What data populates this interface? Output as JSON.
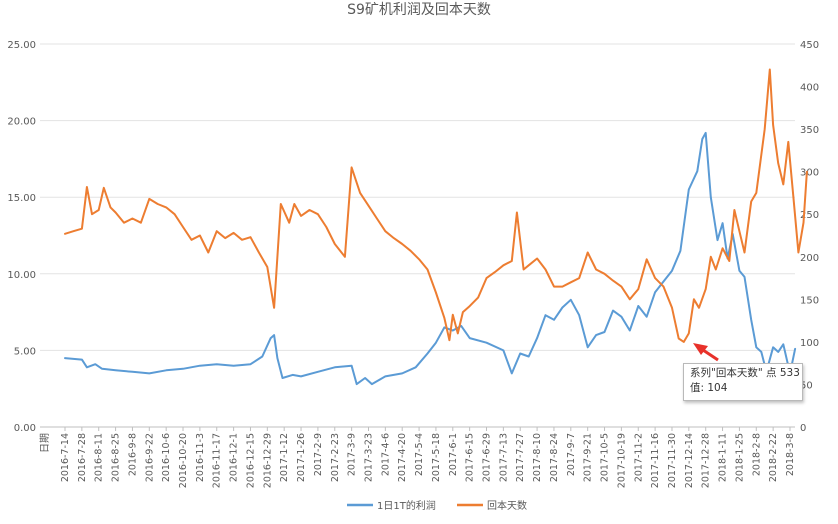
{
  "chart_data": {
    "type": "line",
    "title": "S9矿机利润及回本天数",
    "xlabel": "日期",
    "left_axis": {
      "min": 0,
      "max": 25,
      "ticks": [
        "0.00",
        "5.00",
        "10.00",
        "15.00",
        "20.00",
        "25.00"
      ]
    },
    "right_axis": {
      "min": 0,
      "max": 450,
      "ticks": [
        "0",
        "50",
        "100",
        "150",
        "200",
        "250",
        "300",
        "350",
        "400",
        "450"
      ]
    },
    "x_tick_labels": [
      "2016-7-14",
      "2016-7-28",
      "2016-8-11",
      "2016-8-25",
      "2016-9-8",
      "2016-9-22",
      "2016-10-6",
      "2016-10-20",
      "2016-11-3",
      "2016-11-17",
      "2016-12-1",
      "2016-12-15",
      "2016-12-29",
      "2017-1-12",
      "2017-1-26",
      "2017-2-9",
      "2017-2-23",
      "2017-3-9",
      "2017-3-23",
      "2017-4-6",
      "2017-4-20",
      "2017-5-4",
      "2017-5-18",
      "2017-6-1",
      "2017-6-15",
      "2017-6-29",
      "2017-7-13",
      "2017-7-27",
      "2017-8-10",
      "2017-8-24",
      "2017-9-7",
      "2017-9-21",
      "2017-10-5",
      "2017-10-19",
      "2017-11-2",
      "2017-11-16",
      "2017-11-30",
      "2017-12-14",
      "2017-12-28",
      "2018-1-11",
      "2018-1-25",
      "2018-2-8",
      "2018-2-22",
      "2018-3-8"
    ],
    "series": [
      {
        "name": "1日1T的利润",
        "axis": "left",
        "color": "#5b9bd5",
        "points": [
          [
            0,
            4.5
          ],
          [
            1,
            4.4
          ],
          [
            1.3,
            3.9
          ],
          [
            1.8,
            4.1
          ],
          [
            2.2,
            3.8
          ],
          [
            3,
            3.7
          ],
          [
            4,
            3.6
          ],
          [
            5,
            3.5
          ],
          [
            6,
            3.7
          ],
          [
            7,
            3.8
          ],
          [
            8,
            4.0
          ],
          [
            9,
            4.1
          ],
          [
            10,
            4.0
          ],
          [
            11,
            4.1
          ],
          [
            11.7,
            4.6
          ],
          [
            12.2,
            5.8
          ],
          [
            12.4,
            6.0
          ],
          [
            12.6,
            4.5
          ],
          [
            12.9,
            3.2
          ],
          [
            13.5,
            3.4
          ],
          [
            14,
            3.3
          ],
          [
            15,
            3.6
          ],
          [
            16,
            3.9
          ],
          [
            17,
            4.0
          ],
          [
            17.3,
            2.8
          ],
          [
            17.8,
            3.2
          ],
          [
            18.2,
            2.8
          ],
          [
            19,
            3.3
          ],
          [
            20,
            3.5
          ],
          [
            20.8,
            3.9
          ],
          [
            21.5,
            4.8
          ],
          [
            22,
            5.5
          ],
          [
            22.5,
            6.5
          ],
          [
            23,
            6.3
          ],
          [
            23.5,
            6.6
          ],
          [
            24,
            5.8
          ],
          [
            25,
            5.5
          ],
          [
            26,
            5.0
          ],
          [
            26.5,
            3.5
          ],
          [
            27,
            4.8
          ],
          [
            27.5,
            4.6
          ],
          [
            28,
            5.8
          ],
          [
            28.5,
            7.3
          ],
          [
            29,
            7.0
          ],
          [
            29.5,
            7.8
          ],
          [
            30,
            8.3
          ],
          [
            30.5,
            7.3
          ],
          [
            31,
            5.2
          ],
          [
            31.5,
            6.0
          ],
          [
            32,
            6.2
          ],
          [
            32.5,
            7.6
          ],
          [
            33,
            7.2
          ],
          [
            33.5,
            6.3
          ],
          [
            34,
            7.9
          ],
          [
            34.5,
            7.2
          ],
          [
            35,
            8.8
          ],
          [
            35.5,
            9.5
          ],
          [
            36,
            10.2
          ],
          [
            36.5,
            11.5
          ],
          [
            37,
            15.5
          ],
          [
            37.5,
            16.7
          ],
          [
            37.8,
            18.8
          ],
          [
            38,
            19.2
          ],
          [
            38.3,
            15.0
          ],
          [
            38.7,
            12.2
          ],
          [
            39,
            13.3
          ],
          [
            39.3,
            11.0
          ],
          [
            39.6,
            12.6
          ],
          [
            40,
            10.2
          ],
          [
            40.3,
            9.8
          ],
          [
            40.7,
            7.0
          ],
          [
            41,
            5.2
          ],
          [
            41.3,
            4.9
          ],
          [
            41.6,
            3.6
          ],
          [
            42,
            5.2
          ],
          [
            42.3,
            4.9
          ],
          [
            42.6,
            5.4
          ],
          [
            43,
            3.5
          ],
          [
            43.3,
            5.1
          ]
        ]
      },
      {
        "name": "回本天数",
        "axis": "right",
        "color": "#ed7d31",
        "points": [
          [
            0,
            227
          ],
          [
            0.5,
            230
          ],
          [
            1,
            233
          ],
          [
            1.3,
            282
          ],
          [
            1.6,
            250
          ],
          [
            2,
            255
          ],
          [
            2.3,
            281
          ],
          [
            2.7,
            258
          ],
          [
            3,
            252
          ],
          [
            3.5,
            240
          ],
          [
            4,
            245
          ],
          [
            4.5,
            240
          ],
          [
            5,
            268
          ],
          [
            5.5,
            262
          ],
          [
            6,
            258
          ],
          [
            6.5,
            250
          ],
          [
            7,
            235
          ],
          [
            7.5,
            220
          ],
          [
            8,
            225
          ],
          [
            8.5,
            205
          ],
          [
            9,
            230
          ],
          [
            9.5,
            222
          ],
          [
            10,
            228
          ],
          [
            10.5,
            220
          ],
          [
            11,
            223
          ],
          [
            11.5,
            205
          ],
          [
            12,
            188
          ],
          [
            12.4,
            140
          ],
          [
            12.8,
            262
          ],
          [
            13.3,
            240
          ],
          [
            13.6,
            262
          ],
          [
            14,
            248
          ],
          [
            14.5,
            255
          ],
          [
            15,
            250
          ],
          [
            15.5,
            235
          ],
          [
            16,
            215
          ],
          [
            16.6,
            200
          ],
          [
            17,
            305
          ],
          [
            17.5,
            275
          ],
          [
            18,
            260
          ],
          [
            18.5,
            245
          ],
          [
            19,
            230
          ],
          [
            19.5,
            222
          ],
          [
            20,
            215
          ],
          [
            20.5,
            207
          ],
          [
            21,
            197
          ],
          [
            21.5,
            185
          ],
          [
            22,
            158
          ],
          [
            22.5,
            128
          ],
          [
            22.8,
            102
          ],
          [
            23,
            132
          ],
          [
            23.3,
            110
          ],
          [
            23.6,
            135
          ],
          [
            24,
            142
          ],
          [
            24.5,
            152
          ],
          [
            25,
            175
          ],
          [
            25.5,
            182
          ],
          [
            26,
            190
          ],
          [
            26.5,
            195
          ],
          [
            26.8,
            252
          ],
          [
            27.2,
            185
          ],
          [
            27.5,
            190
          ],
          [
            28,
            198
          ],
          [
            28.5,
            185
          ],
          [
            29,
            165
          ],
          [
            29.5,
            165
          ],
          [
            30,
            170
          ],
          [
            30.5,
            175
          ],
          [
            31,
            205
          ],
          [
            31.5,
            185
          ],
          [
            32,
            180
          ],
          [
            32.5,
            172
          ],
          [
            33,
            165
          ],
          [
            33.5,
            150
          ],
          [
            34,
            162
          ],
          [
            34.5,
            197
          ],
          [
            35,
            175
          ],
          [
            35.5,
            165
          ],
          [
            36,
            140
          ],
          [
            36.4,
            104
          ],
          [
            36.7,
            100
          ],
          [
            37,
            110
          ],
          [
            37.3,
            150
          ],
          [
            37.6,
            140
          ],
          [
            38,
            162
          ],
          [
            38.3,
            200
          ],
          [
            38.6,
            185
          ],
          [
            39,
            210
          ],
          [
            39.4,
            195
          ],
          [
            39.7,
            255
          ],
          [
            40,
            230
          ],
          [
            40.3,
            205
          ],
          [
            40.7,
            265
          ],
          [
            41,
            275
          ],
          [
            41.5,
            350
          ],
          [
            41.8,
            420
          ],
          [
            42,
            355
          ],
          [
            42.3,
            310
          ],
          [
            42.6,
            285
          ],
          [
            42.9,
            335
          ],
          [
            43.2,
            270
          ],
          [
            43.5,
            205
          ],
          [
            43.8,
            240
          ],
          [
            44,
            300
          ]
        ]
      }
    ],
    "legend": {
      "placement": "bottom"
    }
  },
  "tooltip": {
    "line1": "系列\"回本天数\" 点 533",
    "line2": "值: 104"
  }
}
